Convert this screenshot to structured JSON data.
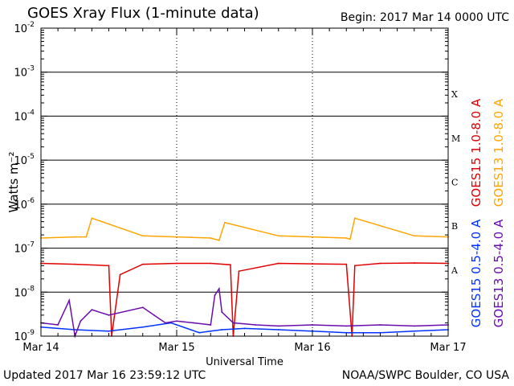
{
  "header": {
    "title": "GOES Xray Flux (1-minute data)",
    "begin": "Begin:  2017 Mar 14 0000 UTC"
  },
  "footer": {
    "updated": "Updated 2017 Mar 16 23:59:12 UTC",
    "credit": "NOAA/SWPC Boulder, CO USA"
  },
  "chart_data": {
    "type": "line",
    "title": "GOES Xray Flux (1-minute data)",
    "xlabel": "Universal Time",
    "ylabel": "Watts m⁻²",
    "yscale": "log",
    "xlim": [
      "2017-03-14 00:00",
      "2017-03-17 00:00"
    ],
    "ylim": [
      1e-09,
      0.01
    ],
    "x_ticks": [
      {
        "x": "2017-03-14 00:00",
        "label": "Mar 14"
      },
      {
        "x": "2017-03-15 00:00",
        "label": "Mar 15"
      },
      {
        "x": "2017-03-16 00:00",
        "label": "Mar 16"
      },
      {
        "x": "2017-03-17 00:00",
        "label": "Mar 17"
      }
    ],
    "y_ticks": [
      {
        "value": 1e-09,
        "mant": "10",
        "exp": "-9"
      },
      {
        "value": 1e-08,
        "mant": "10",
        "exp": "-8"
      },
      {
        "value": 1e-07,
        "mant": "10",
        "exp": "-7"
      },
      {
        "value": 1e-06,
        "mant": "10",
        "exp": "-6"
      },
      {
        "value": 1e-05,
        "mant": "10",
        "exp": "-5"
      },
      {
        "value": 0.0001,
        "mant": "10",
        "exp": "-4"
      },
      {
        "value": 0.001,
        "mant": "10",
        "exp": "-3"
      },
      {
        "value": 0.01,
        "mant": "10",
        "exp": "-2"
      }
    ],
    "flare_classes": [
      {
        "label": "A",
        "value": 1e-08
      },
      {
        "label": "B",
        "value": 1e-07
      },
      {
        "label": "C",
        "value": 1e-06
      },
      {
        "label": "M",
        "value": 1e-05
      },
      {
        "label": "X",
        "value": 0.0001
      }
    ],
    "grid": true,
    "legend_position": "right",
    "colors": {
      "goes15_long": "#e00000",
      "goes13_long": "#ffa500",
      "goes15_short": "#0033ff",
      "goes13_short": "#6a0dad"
    },
    "series": [
      {
        "name": "GOES15 1.0-8.0 A",
        "color": "#e00000",
        "x": [
          "2017-03-14 00:00",
          "2017-03-14 06:00",
          "2017-03-14 12:00",
          "2017-03-14 12:30",
          "2017-03-14 14:00",
          "2017-03-14 18:00",
          "2017-03-15 00:00",
          "2017-03-15 06:00",
          "2017-03-15 09:30",
          "2017-03-15 10:00",
          "2017-03-15 11:00",
          "2017-03-15 18:00",
          "2017-03-16 00:00",
          "2017-03-16 06:00",
          "2017-03-16 07:00",
          "2017-03-16 07:30",
          "2017-03-16 12:00",
          "2017-03-16 18:00",
          "2017-03-17 00:00"
        ],
        "values": [
          4.5e-08,
          4.3e-08,
          4e-08,
          1e-09,
          2.5e-08,
          4.3e-08,
          4.5e-08,
          4.5e-08,
          4.2e-08,
          1e-09,
          3e-08,
          4.5e-08,
          4.4e-08,
          4.3e-08,
          1e-09,
          4e-08,
          4.5e-08,
          4.6e-08,
          4.5e-08
        ]
      },
      {
        "name": "GOES13 1.0-8.0 A",
        "color": "#ffa500",
        "x": [
          "2017-03-14 00:00",
          "2017-03-14 06:00",
          "2017-03-14 08:00",
          "2017-03-14 09:00",
          "2017-03-14 18:00",
          "2017-03-15 00:00",
          "2017-03-15 06:00",
          "2017-03-15 07:30",
          "2017-03-15 08:30",
          "2017-03-15 18:00",
          "2017-03-16 00:00",
          "2017-03-16 06:00",
          "2017-03-16 06:40",
          "2017-03-16 07:30",
          "2017-03-16 18:00",
          "2017-03-17 00:00"
        ],
        "values": [
          1.7e-07,
          1.8e-07,
          1.8e-07,
          4.8e-07,
          1.9e-07,
          1.8e-07,
          1.7e-07,
          1.5e-07,
          3.8e-07,
          1.9e-07,
          1.8e-07,
          1.7e-07,
          1.6e-07,
          4.8e-07,
          1.9e-07,
          1.8e-07
        ]
      },
      {
        "name": "GOES15 0.5-4.0 A",
        "color": "#0033ff",
        "x": [
          "2017-03-14 00:00",
          "2017-03-14 06:00",
          "2017-03-14 12:00",
          "2017-03-14 18:00",
          "2017-03-14 23:00",
          "2017-03-15 04:00",
          "2017-03-15 06:00",
          "2017-03-15 08:00",
          "2017-03-15 12:00",
          "2017-03-15 18:00",
          "2017-03-16 00:00",
          "2017-03-16 06:00",
          "2017-03-16 12:00",
          "2017-03-16 18:00",
          "2017-03-17 00:00"
        ],
        "values": [
          1.6e-09,
          1.4e-09,
          1.3e-09,
          1.6e-09,
          2e-09,
          1.2e-09,
          1.3e-09,
          1.4e-09,
          1.5e-09,
          1.4e-09,
          1.3e-09,
          1.2e-09,
          1.2e-09,
          1.3e-09,
          1.4e-09
        ]
      },
      {
        "name": "GOES13 0.5-4.0 A",
        "color": "#6a0dad",
        "x": [
          "2017-03-14 00:00",
          "2017-03-14 03:00",
          "2017-03-14 05:00",
          "2017-03-14 06:00",
          "2017-03-14 07:00",
          "2017-03-14 09:00",
          "2017-03-14 12:00",
          "2017-03-14 18:00",
          "2017-03-14 20:00",
          "2017-03-14 22:00",
          "2017-03-15 00:00",
          "2017-03-15 03:00",
          "2017-03-15 06:00",
          "2017-03-15 06:45",
          "2017-03-15 07:30",
          "2017-03-15 08:00",
          "2017-03-15 10:00",
          "2017-03-15 14:00",
          "2017-03-15 18:00",
          "2017-03-16 00:00",
          "2017-03-16 06:00",
          "2017-03-16 12:00",
          "2017-03-16 18:00",
          "2017-03-17 00:00"
        ],
        "values": [
          2e-09,
          1.8e-09,
          6.5e-09,
          1e-09,
          2.2e-09,
          4e-09,
          3e-09,
          4.5e-09,
          3e-09,
          2e-09,
          2.2e-09,
          2e-09,
          1.8e-09,
          8.5e-09,
          1.2e-08,
          3.5e-09,
          2e-09,
          1.8e-09,
          1.7e-09,
          1.8e-09,
          1.7e-09,
          1.8e-09,
          1.7e-09,
          1.8e-09
        ]
      }
    ]
  }
}
